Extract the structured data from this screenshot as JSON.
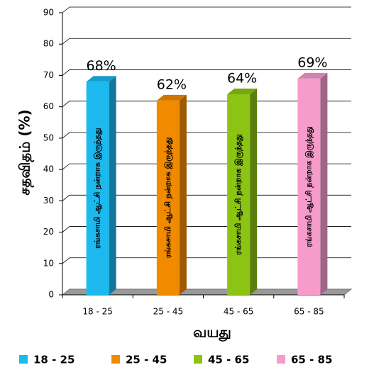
{
  "chart_data": {
    "type": "bar3d",
    "y_label": "சதவிதம் (%)",
    "x_label": "வயது",
    "categories": [
      "18 - 25",
      "25 - 45",
      "45 - 65",
      "65 - 85"
    ],
    "values": [
      68,
      62,
      64,
      69
    ],
    "value_labels": [
      "68%",
      "62%",
      "64%",
      "69%"
    ],
    "bar_texts": [
      "ரங்கசாமி ஆட்சி நன்றாக இருந்தது",
      "ரங்கசாமி ஆட்சி நன்றாக இருந்தது",
      "ரங்கசாமி ஆட்சி நன்றாக இருந்தது",
      "ரங்கசாமி ஆட்சி நன்றாக இருந்தது"
    ],
    "colors": [
      "#1cb9ef",
      "#f28a00",
      "#8cc414",
      "#f59ccb"
    ],
    "ylim": [
      0,
      90
    ],
    "yticks": [
      0,
      10,
      20,
      30,
      40,
      50,
      60,
      70,
      80,
      90
    ],
    "grid": true,
    "legend": "bottom"
  }
}
